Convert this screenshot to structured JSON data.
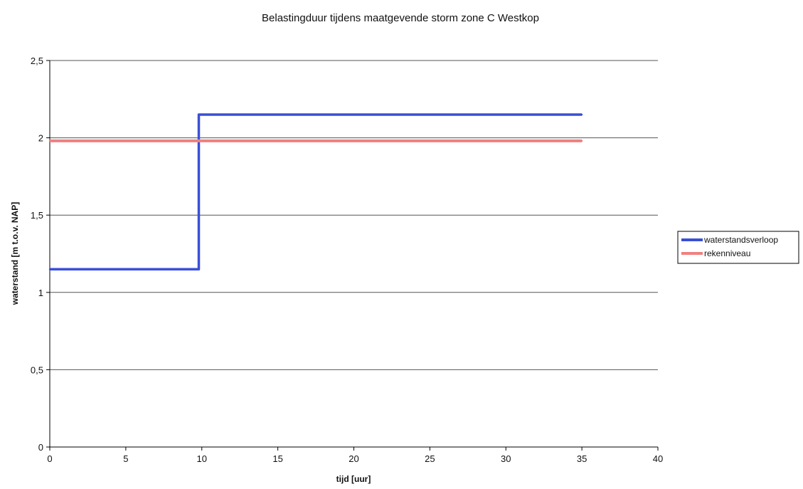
{
  "chart_data": {
    "type": "line",
    "title": "Belastingduur tijdens maatgevende storm zone C Westkop",
    "xlabel": "tijd [uur]",
    "ylabel": "waterstand [m t.o.v. NAP]",
    "xlim": [
      0,
      40
    ],
    "ylim": [
      0,
      2.5
    ],
    "xticks": [
      0,
      5,
      10,
      15,
      20,
      25,
      30,
      35,
      40
    ],
    "xtick_labels": [
      "0",
      "5",
      "10",
      "15",
      "20",
      "25",
      "30",
      "35",
      "40"
    ],
    "yticks": [
      0,
      0.5,
      1,
      1.5,
      2,
      2.5
    ],
    "ytick_labels": [
      "0",
      "0,5",
      "1",
      "1,5",
      "2",
      "2,5"
    ],
    "grid": "horizontal",
    "legend_position": "right",
    "series": [
      {
        "name": "waterstandsverloop",
        "color": "#3a4fd6",
        "x": [
          0,
          9.8,
          9.8,
          35
        ],
        "y": [
          1.15,
          1.15,
          2.15,
          2.15
        ]
      },
      {
        "name": "rekenniveau",
        "color": "#f08080",
        "x": [
          0,
          35
        ],
        "y": [
          1.98,
          1.98
        ]
      }
    ]
  }
}
